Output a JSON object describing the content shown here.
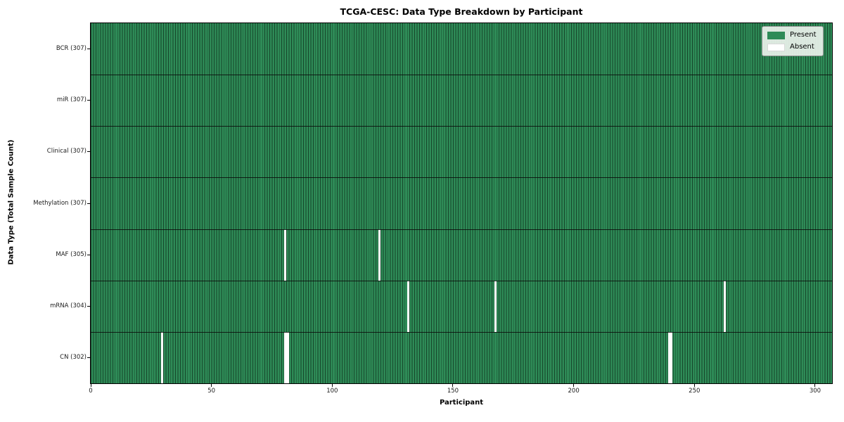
{
  "figure": {
    "title": "TCGA-CESC: Data Type Breakdown by Participant",
    "xlabel": "Participant",
    "ylabel": "Data Type (Total Sample Count)"
  },
  "legend": {
    "items": [
      {
        "label": "Present",
        "color": "#2e8b57"
      },
      {
        "label": "Absent",
        "color": "#ffffff"
      }
    ]
  },
  "chart_data": {
    "type": "heatmap",
    "title": "TCGA-CESC: Data Type Breakdown by Participant",
    "xlabel": "Participant",
    "ylabel": "Data Type (Total Sample Count)",
    "legend_position": "upper right",
    "grid": false,
    "x_ticks": [
      0,
      50,
      100,
      150,
      200,
      250,
      300
    ],
    "xlim": [
      0,
      307
    ],
    "n_participants": 307,
    "rows": [
      {
        "name": "BCR",
        "label": "BCR (307)",
        "present_count": 307,
        "absent_participants": []
      },
      {
        "name": "miR",
        "label": "miR (307)",
        "present_count": 307,
        "absent_participants": []
      },
      {
        "name": "Clinical",
        "label": "Clinical (307)",
        "present_count": 307,
        "absent_participants": []
      },
      {
        "name": "Methylation",
        "label": "Methylation (307)",
        "present_count": 307,
        "absent_participants": []
      },
      {
        "name": "MAF",
        "label": "MAF (305)",
        "present_count": 305,
        "absent_participants": [
          80,
          119
        ]
      },
      {
        "name": "mRNA",
        "label": "mRNA (304)",
        "present_count": 304,
        "absent_participants": [
          131,
          167,
          262
        ]
      },
      {
        "name": "CN",
        "label": "CN (302)",
        "present_count": 302,
        "absent_participants": [
          29,
          80,
          81,
          239,
          240
        ]
      }
    ],
    "colors": {
      "present": "#2e8b57",
      "present_edge": "#16452a",
      "absent": "#ffffff",
      "row_separator": "#0b0b0b"
    },
    "legend_entries": [
      "Present",
      "Absent"
    ]
  }
}
